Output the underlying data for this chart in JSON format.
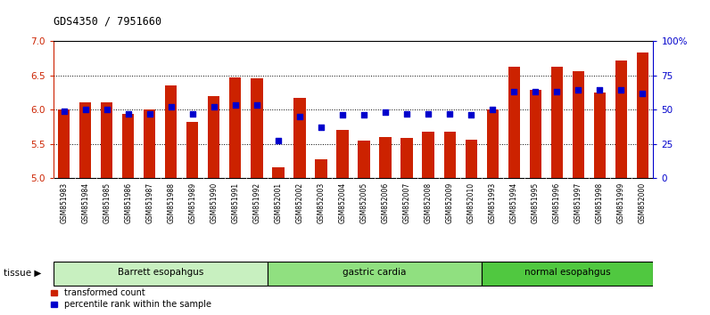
{
  "title": "GDS4350 / 7951660",
  "samples": [
    "GSM851983",
    "GSM851984",
    "GSM851985",
    "GSM851986",
    "GSM851987",
    "GSM851988",
    "GSM851989",
    "GSM851990",
    "GSM851991",
    "GSM851992",
    "GSM852001",
    "GSM852002",
    "GSM852003",
    "GSM852004",
    "GSM852005",
    "GSM852006",
    "GSM852007",
    "GSM852008",
    "GSM852009",
    "GSM852010",
    "GSM851993",
    "GSM851994",
    "GSM851995",
    "GSM851996",
    "GSM851997",
    "GSM851998",
    "GSM851999",
    "GSM852000"
  ],
  "bar_values": [
    6.0,
    6.1,
    6.1,
    5.93,
    6.0,
    6.35,
    5.82,
    6.2,
    6.47,
    6.45,
    5.15,
    6.17,
    5.27,
    5.7,
    5.55,
    5.6,
    5.58,
    5.67,
    5.67,
    5.56,
    6.0,
    6.62,
    6.28,
    6.62,
    6.56,
    6.25,
    6.72,
    6.83
  ],
  "percentile_values": [
    49,
    50,
    50,
    47,
    47,
    52,
    47,
    52,
    53,
    53,
    27,
    45,
    37,
    46,
    46,
    48,
    47,
    47,
    47,
    46,
    50,
    63,
    63,
    63,
    64,
    64,
    64,
    62
  ],
  "groups": [
    {
      "label": "Barrett esopahgus",
      "start": 0,
      "end": 9,
      "color": "#c8f0c0"
    },
    {
      "label": "gastric cardia",
      "start": 10,
      "end": 19,
      "color": "#90e080"
    },
    {
      "label": "normal esopahgus",
      "start": 20,
      "end": 27,
      "color": "#50c840"
    }
  ],
  "ylim_left": [
    5.0,
    7.0
  ],
  "ylim_right": [
    0,
    100
  ],
  "yticks_left": [
    5.0,
    5.5,
    6.0,
    6.5,
    7.0
  ],
  "yticks_right": [
    0,
    25,
    50,
    75,
    100
  ],
  "ytick_labels_right": [
    "0",
    "25",
    "50",
    "75",
    "100%"
  ],
  "dotted_lines": [
    5.5,
    6.0,
    6.5
  ],
  "bar_color": "#cc2200",
  "dot_color": "#0000cc",
  "bar_bottom": 5.0,
  "xtick_bg": "#d8d8d8",
  "legend_items": [
    {
      "label": "transformed count",
      "color": "#cc2200"
    },
    {
      "label": "percentile rank within the sample",
      "color": "#0000cc"
    }
  ]
}
